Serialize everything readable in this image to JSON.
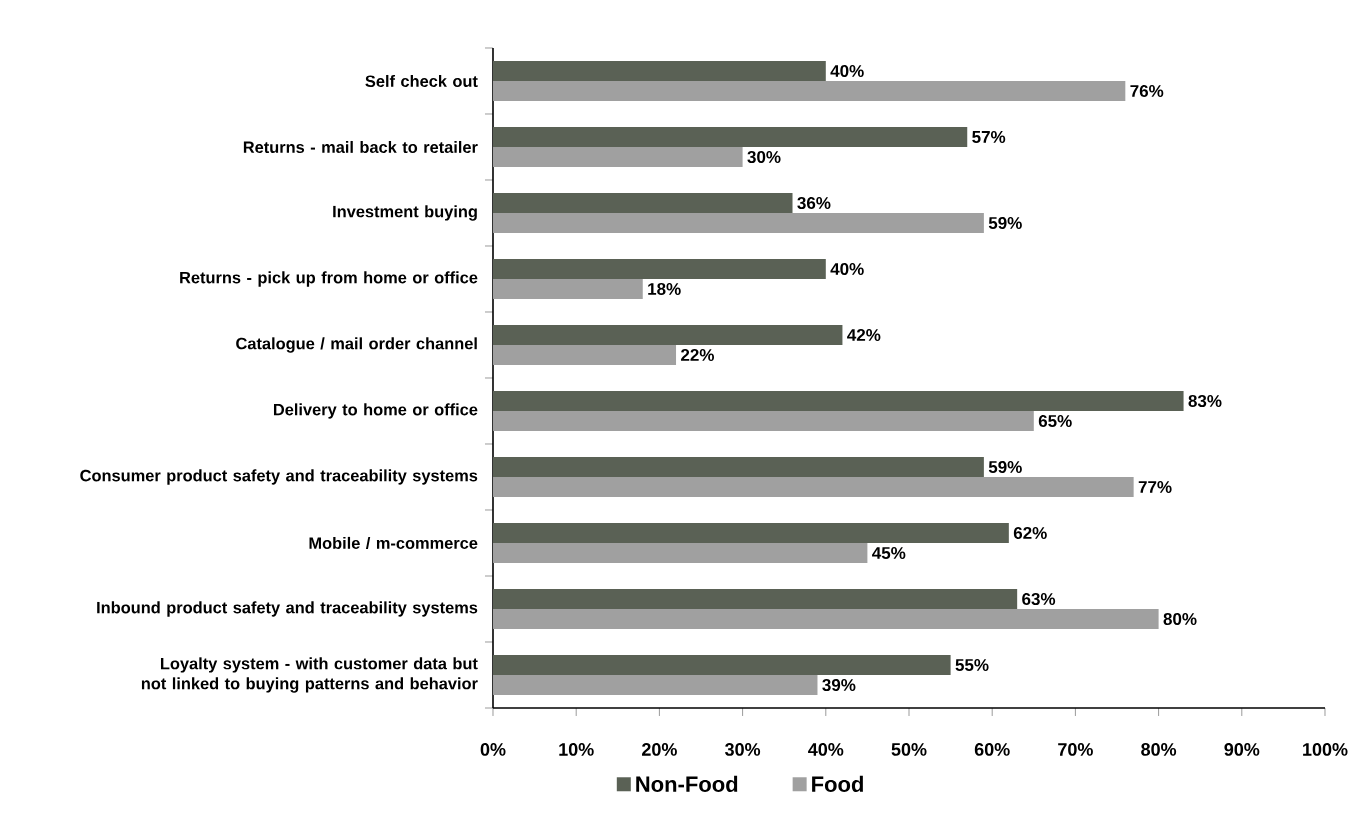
{
  "chart_data": {
    "type": "bar",
    "orientation": "horizontal",
    "legend": "bottom",
    "categories": [
      "Self check out",
      "Returns - mail back to retailer",
      "Investment buying",
      "Returns - pick up from home or office",
      "Catalogue / mail order channel",
      "Delivery to home or office",
      "Consumer product safety and traceability systems",
      "Mobile / m-commerce",
      "Inbound product safety and traceability systems",
      "Loyalty system - with customer data but not linked to buying patterns and behavior"
    ],
    "series": [
      {
        "name": "Non-Food",
        "color": "#5a6155",
        "values": [
          40,
          57,
          36,
          40,
          42,
          83,
          59,
          62,
          63,
          55
        ],
        "value_labels": [
          "40%",
          "57%",
          "36%",
          "40%",
          "42%",
          "83%",
          "59%",
          "62%",
          "63%",
          "55%"
        ]
      },
      {
        "name": "Food",
        "color": "#a0a0a0",
        "values": [
          76,
          30,
          59,
          18,
          22,
          65,
          77,
          45,
          80,
          39
        ],
        "value_labels": [
          "76%",
          "30%",
          "59%",
          "18%",
          "22%",
          "65%",
          "77%",
          "45%",
          "80%",
          "39%"
        ]
      }
    ],
    "xlim": [
      0,
      100
    ],
    "xticks": [
      {
        "value": 0,
        "label": "0%"
      },
      {
        "value": 10,
        "label": "10%"
      },
      {
        "value": 20,
        "label": "20%"
      },
      {
        "value": 30,
        "label": "30%"
      },
      {
        "value": 40,
        "label": "40%"
      },
      {
        "value": 50,
        "label": "50%"
      },
      {
        "value": 60,
        "label": "60%"
      },
      {
        "value": 70,
        "label": "70%"
      },
      {
        "value": 80,
        "label": "80%"
      },
      {
        "value": 90,
        "label": "90%"
      },
      {
        "value": 100,
        "label": "100%"
      }
    ]
  }
}
